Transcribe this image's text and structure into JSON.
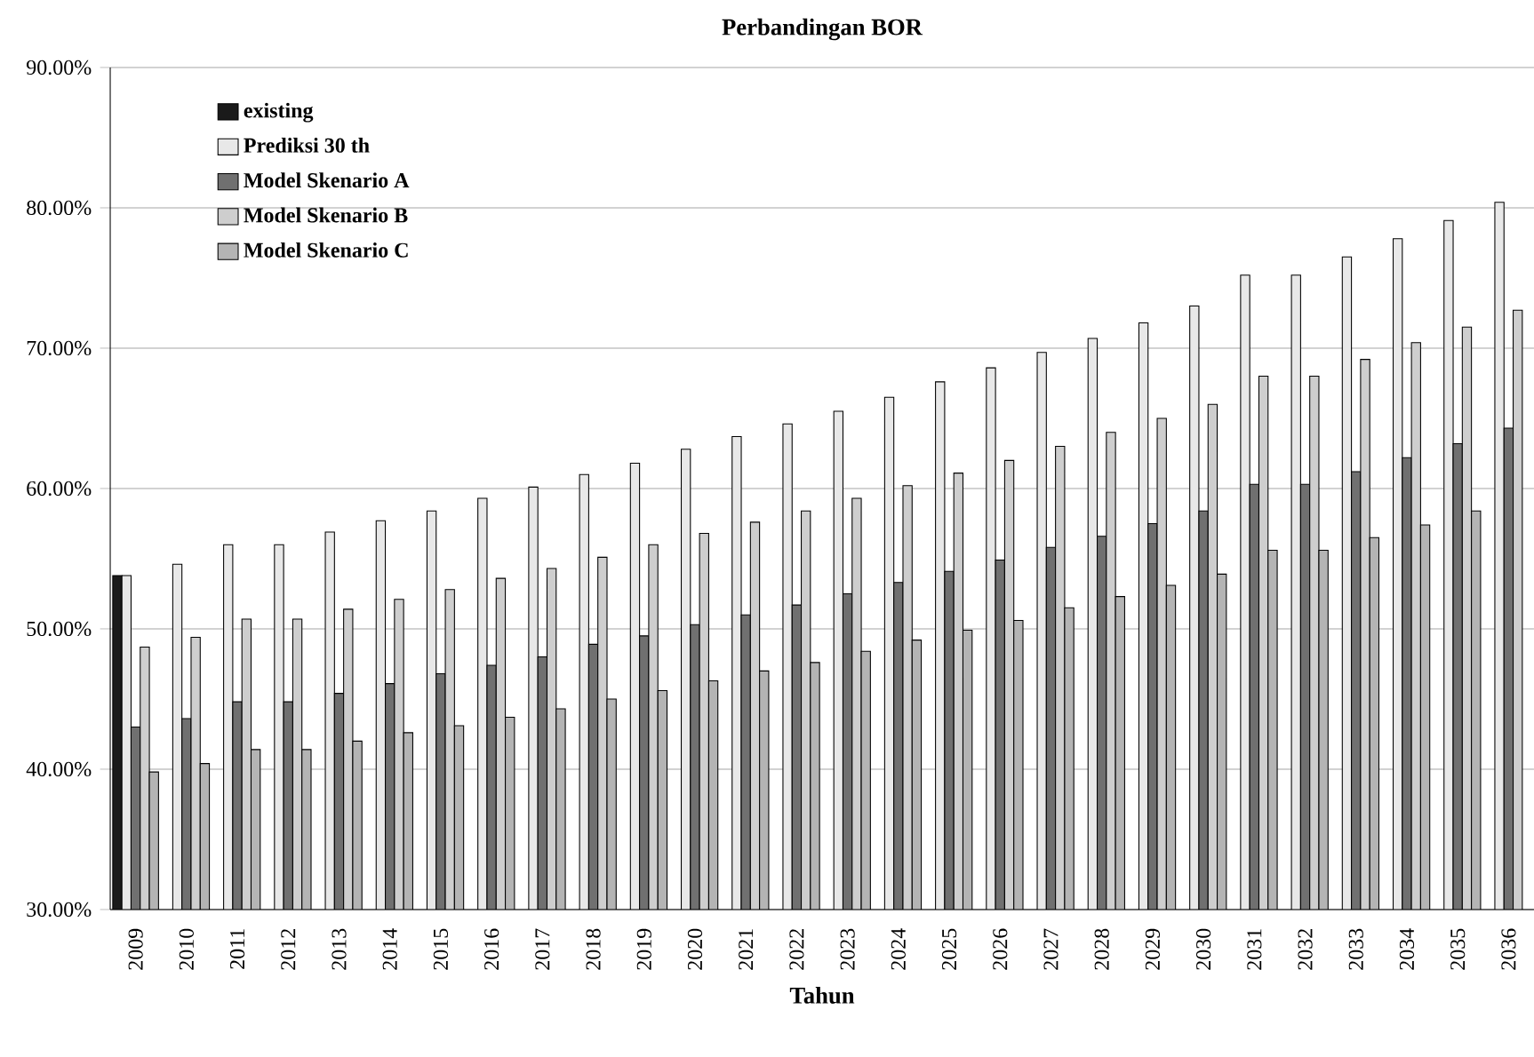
{
  "chart_data": {
    "type": "bar",
    "title": "Perbandingan BOR",
    "xlabel": "Tahun",
    "categories": [
      "2009",
      "2010",
      "2011",
      "2012",
      "2013",
      "2014",
      "2015",
      "2016",
      "2017",
      "2018",
      "2019",
      "2020",
      "2021",
      "2022",
      "2023",
      "2024",
      "2025",
      "2026",
      "2027",
      "2028",
      "2029",
      "2030",
      "2031",
      "2032",
      "2033",
      "2034",
      "2035",
      "2036"
    ],
    "series": [
      {
        "name": "existing",
        "color": "#1a1a1a",
        "values": [
          53.8,
          null,
          null,
          null,
          null,
          null,
          null,
          null,
          null,
          null,
          null,
          null,
          null,
          null,
          null,
          null,
          null,
          null,
          null,
          null,
          null,
          null,
          null,
          null,
          null,
          null,
          null,
          null
        ]
      },
      {
        "name": "Prediksi 30 th",
        "color": "#e8e8e8",
        "values": [
          53.8,
          54.6,
          56.0,
          56.0,
          56.9,
          57.7,
          58.4,
          59.3,
          60.1,
          61.0,
          61.8,
          62.8,
          63.7,
          64.6,
          65.5,
          66.5,
          67.6,
          68.6,
          69.7,
          70.7,
          71.8,
          73.0,
          75.2,
          75.2,
          76.5,
          77.8,
          79.1,
          80.4
        ]
      },
      {
        "name": "Model Skenario A",
        "color": "#707070",
        "values": [
          43.0,
          43.6,
          44.8,
          44.8,
          45.4,
          46.1,
          46.8,
          47.4,
          48.0,
          48.9,
          49.5,
          50.3,
          51.0,
          51.7,
          52.5,
          53.3,
          54.1,
          54.9,
          55.8,
          56.6,
          57.5,
          58.4,
          60.3,
          60.3,
          61.2,
          62.2,
          63.2,
          64.3
        ]
      },
      {
        "name": "Model Skenario B",
        "color": "#cecece",
        "values": [
          48.7,
          49.4,
          50.7,
          50.7,
          51.4,
          52.1,
          52.8,
          53.6,
          54.3,
          55.1,
          56.0,
          56.8,
          57.6,
          58.4,
          59.3,
          60.2,
          61.1,
          62.0,
          63.0,
          64.0,
          65.0,
          66.0,
          68.0,
          68.0,
          69.2,
          70.4,
          71.5,
          72.7
        ]
      },
      {
        "name": "Model Skenario C",
        "color": "#b4b4b4",
        "values": [
          39.8,
          40.4,
          41.4,
          41.4,
          42.0,
          42.6,
          43.1,
          43.7,
          44.3,
          45.0,
          45.6,
          46.3,
          47.0,
          47.6,
          48.4,
          49.2,
          49.9,
          50.6,
          51.5,
          52.3,
          53.1,
          53.9,
          55.6,
          55.6,
          56.5,
          57.4,
          58.4,
          null
        ]
      }
    ],
    "ylim": [
      30,
      90
    ],
    "yticks": [
      {
        "value": 30,
        "label": "30.00%"
      },
      {
        "value": 40,
        "label": "40.00%"
      },
      {
        "value": 50,
        "label": "50.00%"
      },
      {
        "value": 60,
        "label": "60.00%"
      },
      {
        "value": 70,
        "label": "70.00%"
      },
      {
        "value": 80,
        "label": "80.00%"
      },
      {
        "value": 90,
        "label": "90.00%"
      }
    ],
    "grid": "y",
    "legend": "top left"
  }
}
